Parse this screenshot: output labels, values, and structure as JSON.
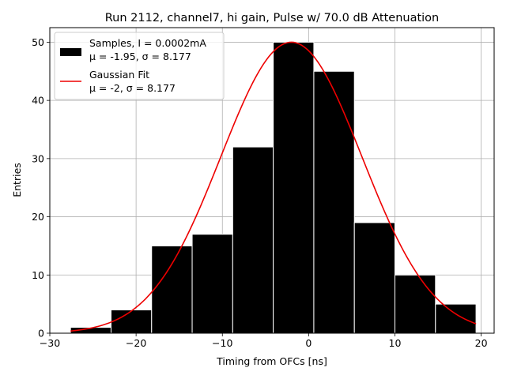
{
  "chart_data": {
    "type": "bar",
    "title": "Run 2112, channel7, hi gain, Pulse w/ 70.0 dB Attenuation",
    "xlabel": "Timing from OFCs [ns]",
    "ylabel": "Entries",
    "xlim": [
      -30,
      21.5
    ],
    "ylim": [
      0,
      52.5
    ],
    "xticks": [
      -30,
      -20,
      -10,
      0,
      10,
      20
    ],
    "yticks": [
      0,
      10,
      20,
      30,
      40,
      50
    ],
    "grid": true,
    "legend_position": "top-left",
    "histogram": {
      "bin_edges": [
        -27.6,
        -22.9,
        -18.2,
        -13.5,
        -8.8,
        -4.1,
        0.6,
        5.3,
        10.0,
        14.7,
        19.4
      ],
      "counts": [
        1,
        4,
        15,
        17,
        32,
        50,
        45,
        19,
        10,
        5
      ],
      "color": "#000000",
      "edgecolor": "#ffffff"
    },
    "fit": {
      "type": "gaussian",
      "amplitude": 50,
      "mu": -2,
      "sigma": 8.177,
      "x_range": [
        -27.6,
        19.4
      ],
      "color": "#ee0000"
    },
    "legend": [
      {
        "kind": "patch",
        "color": "#000000",
        "line1": "Samples, I = 0.0002mA",
        "line2": "μ = -1.95, σ = 8.177"
      },
      {
        "kind": "line",
        "color": "#ee0000",
        "line1": "Gaussian Fit",
        "line2": "μ = -2, σ = 8.177"
      }
    ]
  }
}
